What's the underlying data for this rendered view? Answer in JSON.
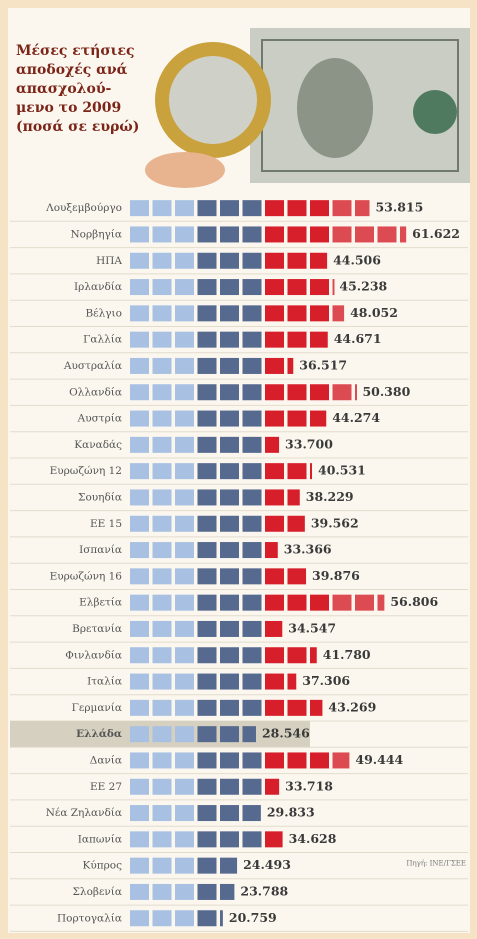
{
  "chart_data": {
    "type": "pictogram",
    "title": "Μέσες ετήσιες\nαποδοχές ανά\nαπασχολού-\nμενο το 2009\n(ποσά σε ευρώ)",
    "categories": [
      "Λουξεμβούργο",
      "Νορβηγία",
      "ΗΠΑ",
      "Ιρλανδία",
      "Βέλγιο",
      "Γαλλία",
      "Αυστραλία",
      "Ολλανδία",
      "Αυστρία",
      "Καναδάς",
      "Ευρωζώνη 12",
      "Σουηδία",
      "ΕΕ 15",
      "Ισπανία",
      "Ευρωζώνη 16",
      "Ελβετία",
      "Βρετανία",
      "Φινλανδία",
      "Ιταλία",
      "Γερμανία",
      "Ελλάδα",
      "Δανία",
      "ΕΕ 27",
      "Νέα Ζηλανδία",
      "Ιαπωνία",
      "Κύπρος",
      "Σλοβενία",
      "Πορτογαλία"
    ],
    "values": [
      53815,
      61622,
      44506,
      45238,
      48052,
      44671,
      36517,
      50380,
      44274,
      33700,
      40531,
      38229,
      39562,
      33366,
      39876,
      56806,
      34547,
      41780,
      37306,
      43269,
      28546,
      49444,
      33718,
      29833,
      34628,
      24493,
      23788,
      20759
    ],
    "value_labels": [
      "53.815",
      "61.622",
      "44.506",
      "45.238",
      "48.052",
      "44.671",
      "36.517",
      "50.380",
      "44.274",
      "33.700",
      "40.531",
      "38.229",
      "39.562",
      "33.366",
      "39.876",
      "56.806",
      "34.547",
      "41.780",
      "37.306",
      "43.269",
      "28.546",
      "49.444",
      "33.718",
      "29.833",
      "34.628",
      "24.493",
      "23.788",
      "20.759"
    ],
    "colors": [
      "#a8c1e2",
      "#56698e",
      "#d61f2a"
    ],
    "highlight": "Ελλάδα",
    "source": "Πηγή: ΙΝΕ/ΓΣΕΕ"
  }
}
